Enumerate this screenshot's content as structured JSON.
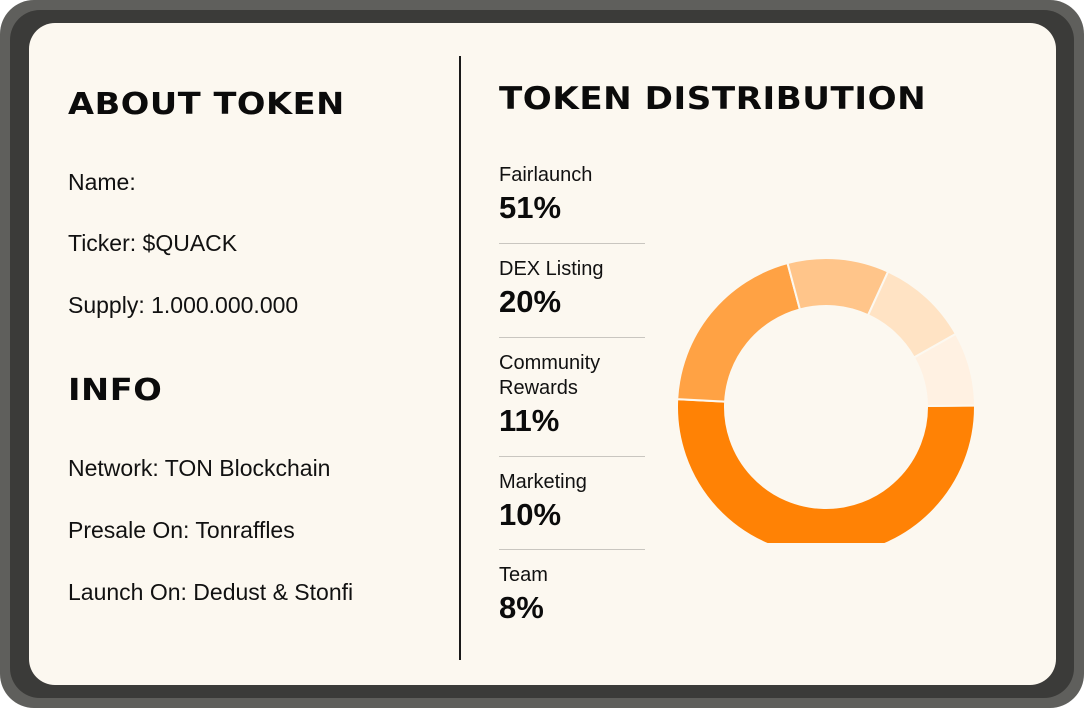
{
  "about": {
    "heading": "ABOUT TOKEN",
    "name_line": "Name:",
    "ticker_line": "Ticker: $QUACK",
    "supply_line": "Supply: 1.000.000.000"
  },
  "info": {
    "heading": "INFO",
    "network_line": "Network: TON Blockchain",
    "presale_line": "Presale On: Tonraffles",
    "launch_line": "Launch On: Dedust & Stonfi"
  },
  "chart_data": {
    "type": "pie",
    "title": "TOKEN DISTRIBUTION",
    "donut": true,
    "legend_position": "left",
    "slices": [
      {
        "label": "Fairlaunch",
        "display": "51%",
        "value": 51,
        "color": "#ff8205"
      },
      {
        "label": "DEX Listing",
        "display": "20%",
        "value": 20,
        "color": "#ffa244"
      },
      {
        "label": "Community Rewards",
        "display": "11%",
        "value": 11,
        "color": "#ffc58a"
      },
      {
        "label": "Marketing",
        "display": "10%",
        "value": 10,
        "color": "#ffe3c4"
      },
      {
        "label": "Team",
        "display": "8%",
        "value": 8,
        "color": "#fff1e2"
      }
    ]
  }
}
